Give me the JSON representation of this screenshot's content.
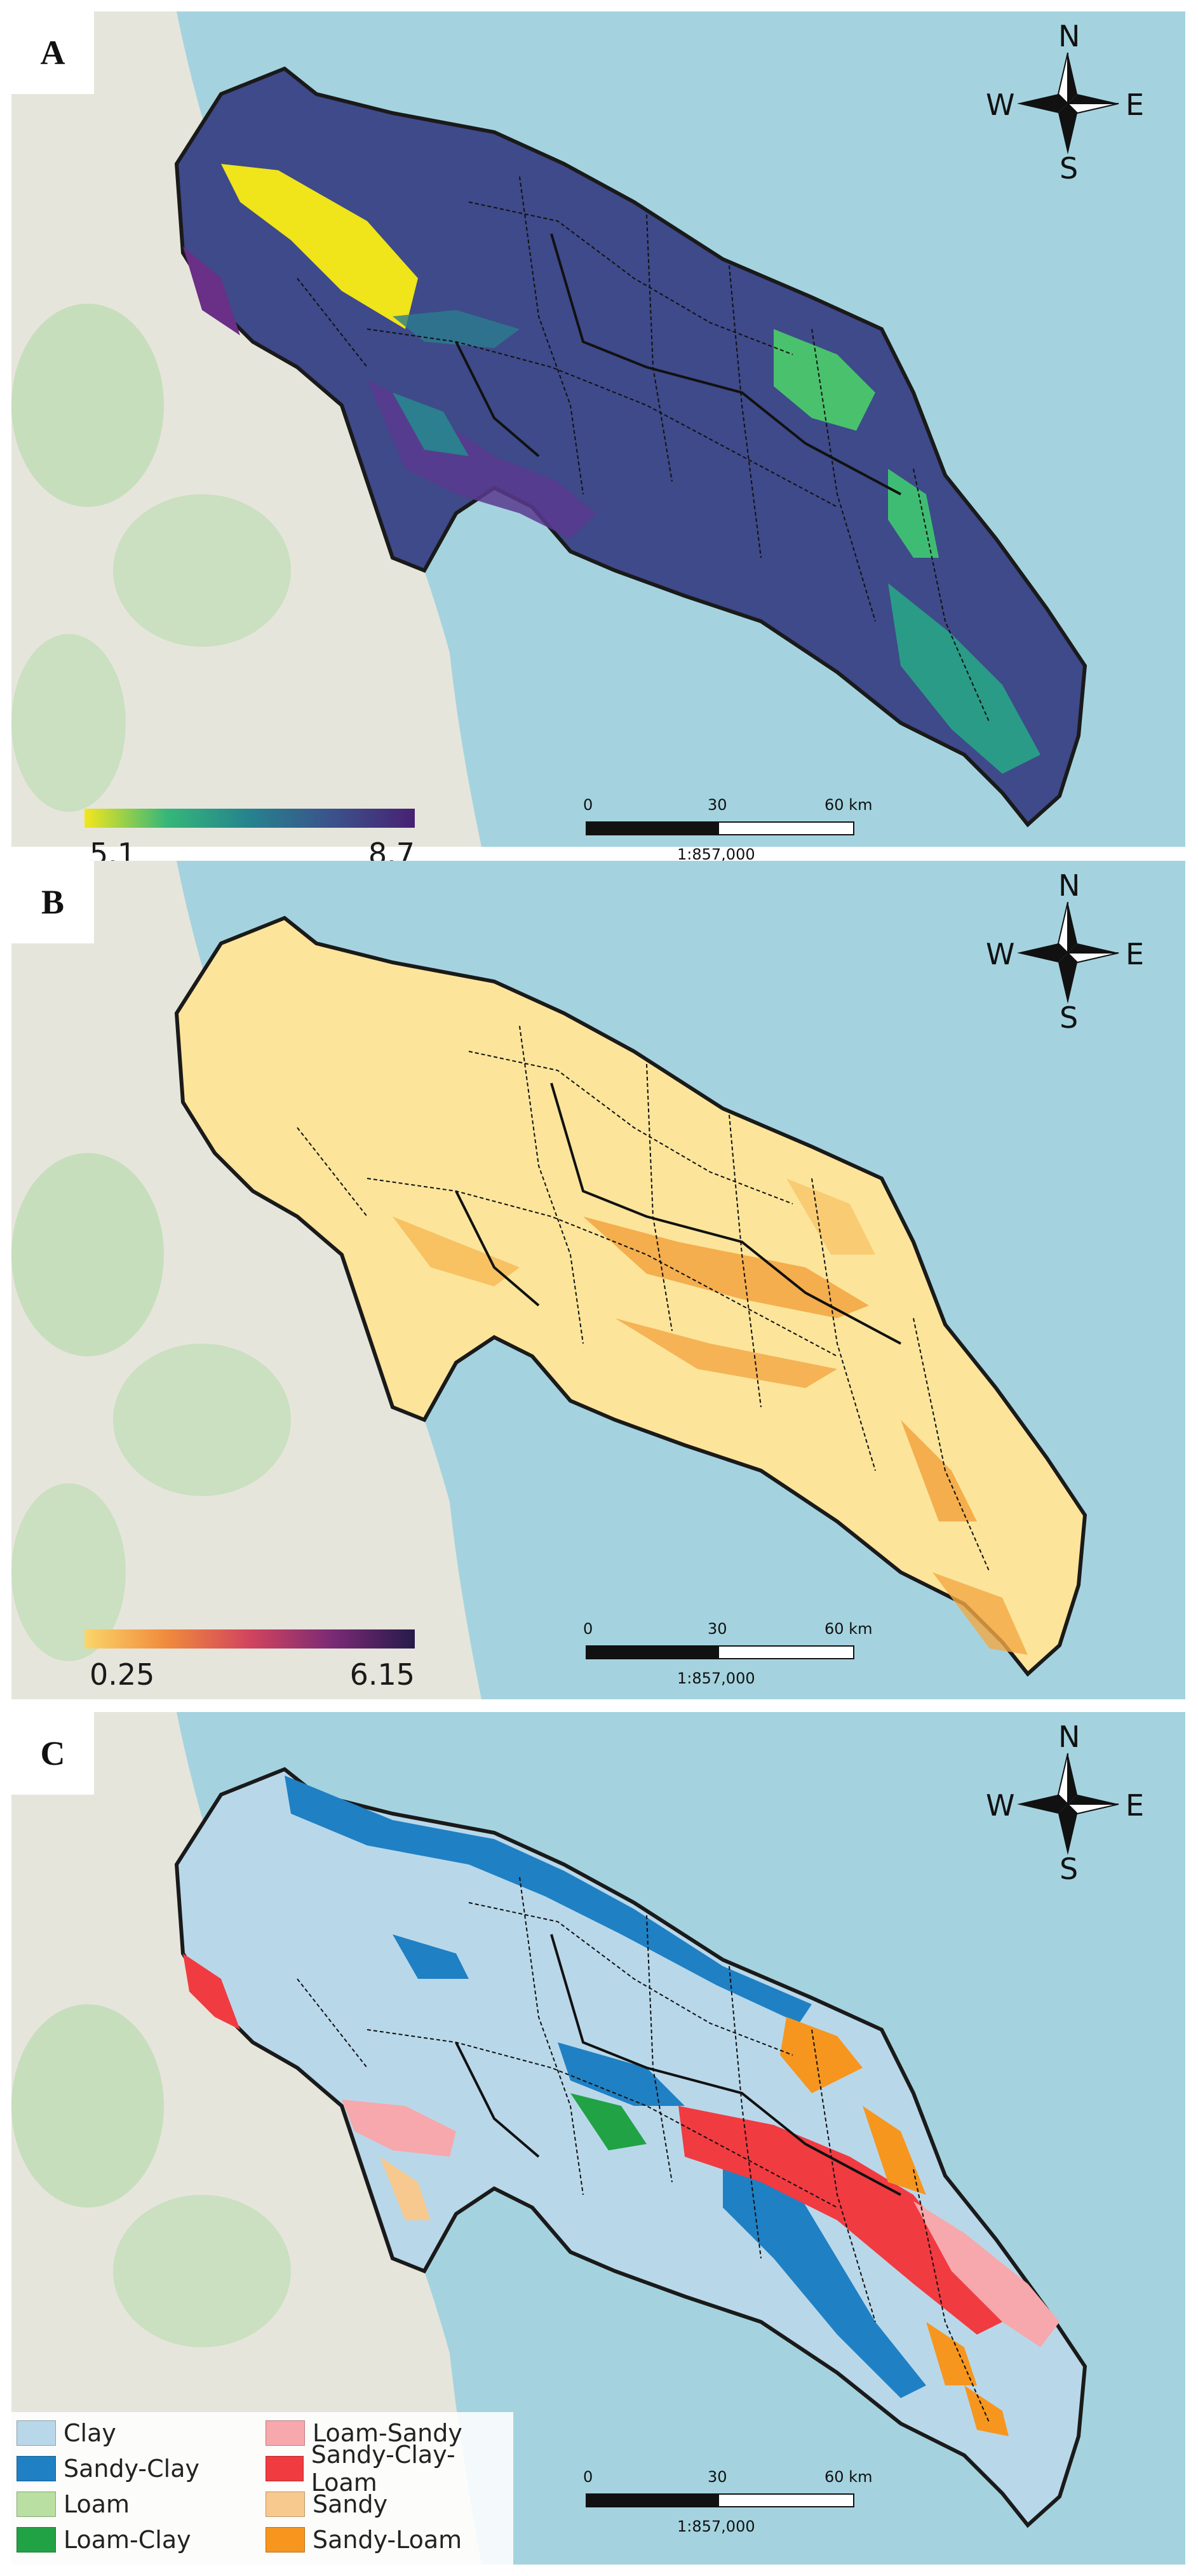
{
  "compass": {
    "n": "N",
    "e": "E",
    "s": "S",
    "w": "W"
  },
  "scale": {
    "ticks": [
      "0",
      "30",
      "60 km"
    ],
    "ratio": "1:857,000"
  },
  "panels": [
    {
      "letter": "A",
      "colorbar": {
        "min": "5.1",
        "max": "8.7",
        "colors": [
          "#f4e61e",
          "#35b779",
          "#26828e",
          "#3b528b",
          "#482173"
        ]
      }
    },
    {
      "letter": "B",
      "colorbar": {
        "min": "0.25",
        "max": "6.15",
        "colors": [
          "#fcd56a",
          "#f08a3c",
          "#d2445e",
          "#7b2a75",
          "#261a4a"
        ]
      }
    },
    {
      "letter": "C"
    }
  ],
  "legend": {
    "items": [
      {
        "label": "Clay",
        "color": "#b8d8ea"
      },
      {
        "label": "Sandy-Clay",
        "color": "#1f80c4"
      },
      {
        "label": "Loam",
        "color": "#b9dfa2"
      },
      {
        "label": "Loam-Clay",
        "color": "#21a245"
      },
      {
        "label": "Loam-Sandy",
        "color": "#f6a8ad"
      },
      {
        "label": "Sandy-Clay-Loam",
        "color": "#f03b41"
      },
      {
        "label": "Sandy",
        "color": "#f8c98f"
      },
      {
        "label": "Sandy-Loam",
        "color": "#f6961f"
      }
    ]
  },
  "colors": {
    "sea": "#a4d3df",
    "land": "#e6e5dc",
    "border": "#1a1a1a"
  }
}
